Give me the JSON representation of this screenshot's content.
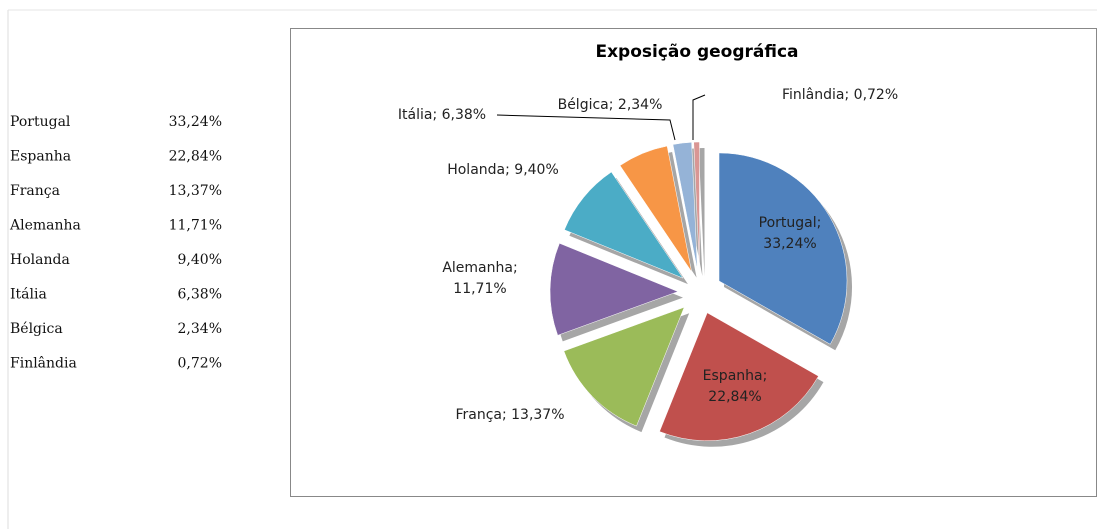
{
  "table": {
    "rows": [
      [
        "Portugal",
        "33,24%"
      ],
      [
        "Espanha",
        "22,84%"
      ],
      [
        "França",
        "13,37%"
      ],
      [
        "Alemanha",
        "11,71%"
      ],
      [
        "Holanda",
        "9,40%"
      ],
      [
        "Itália",
        "6,38%"
      ],
      [
        "Bélgica",
        "2,34%"
      ],
      [
        "Finlândia",
        "0,72%"
      ]
    ]
  },
  "chart_data": {
    "type": "pie",
    "title": "Exposição geográfica",
    "categories": [
      "Portugal",
      "Espanha",
      "França",
      "Alemanha",
      "Holanda",
      "Itália",
      "Bélgica",
      "Finlândia"
    ],
    "values": [
      33.24,
      22.84,
      13.37,
      11.71,
      9.4,
      6.38,
      2.34,
      0.72
    ],
    "value_labels": [
      "Portugal; 33,24%",
      "Espanha; 22,84%",
      "França; 13,37%",
      "Alemanha; 11,71%",
      "Holanda; 9,40%",
      "Itália; 6,38%",
      "Bélgica; 2,34%",
      "Finlândia; 0,72%"
    ],
    "colors": [
      "#4f81bd",
      "#c0504d",
      "#9bbb59",
      "#8064a2",
      "#4bacc6",
      "#f79646",
      "#95b3d7",
      "#d99694"
    ]
  }
}
